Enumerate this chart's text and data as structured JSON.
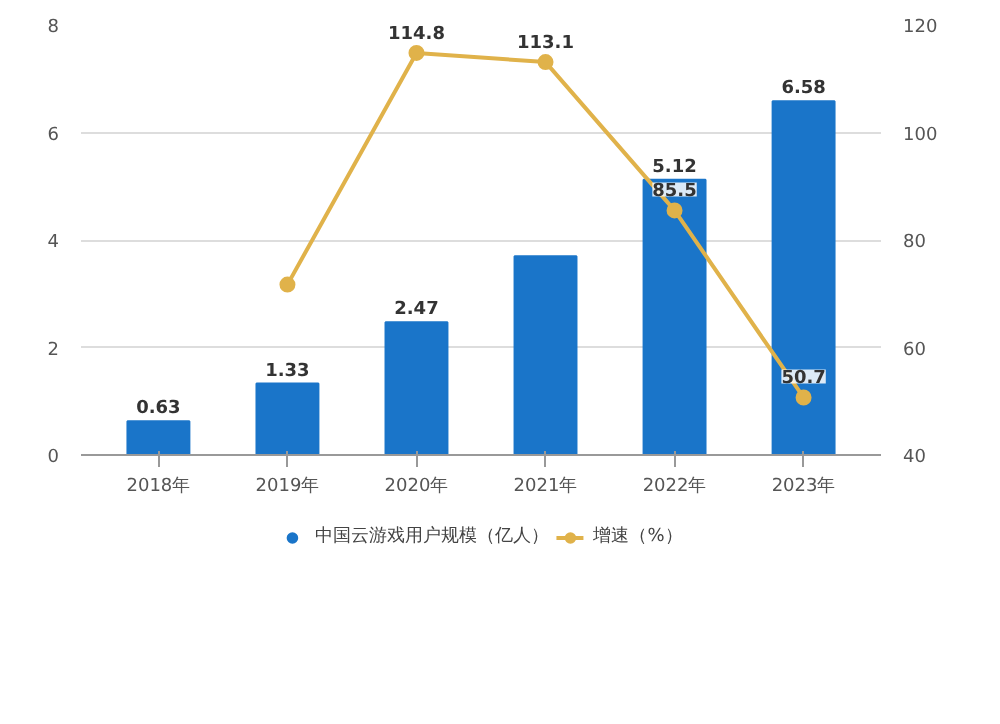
{
  "chart_data": {
    "type": "bar",
    "categories": [
      "2018年",
      "2019年",
      "2020年",
      "2021年",
      "2022年",
      "2023年"
    ],
    "series": [
      {
        "name": "中国云游戏用户规模（亿人）",
        "color": "#1a75c9",
        "values": [
          0.63,
          1.33,
          2.47,
          3.7,
          5.12,
          6.58
        ],
        "value_labels": [
          "0.63",
          "1.33",
          "2.47",
          null,
          "5.12",
          "6.58"
        ]
      },
      {
        "name": "增速（%）",
        "type": "line",
        "axis": "y2",
        "color": "#e0b24a",
        "values": [
          null,
          71.7,
          114.8,
          113.1,
          85.5,
          50.7
        ],
        "value_labels": [
          null,
          null,
          "114.8",
          "113.1",
          "85.5",
          "50.7"
        ]
      }
    ],
    "ylim": [
      0,
      8
    ],
    "yticks": [
      0,
      2,
      4,
      6,
      8
    ],
    "y2lim": [
      40,
      120
    ],
    "y2ticks": [
      40,
      60,
      80,
      100,
      120
    ],
    "grid": "y",
    "legend": "bottom",
    "marker": "circle",
    "line_style": "solid"
  }
}
